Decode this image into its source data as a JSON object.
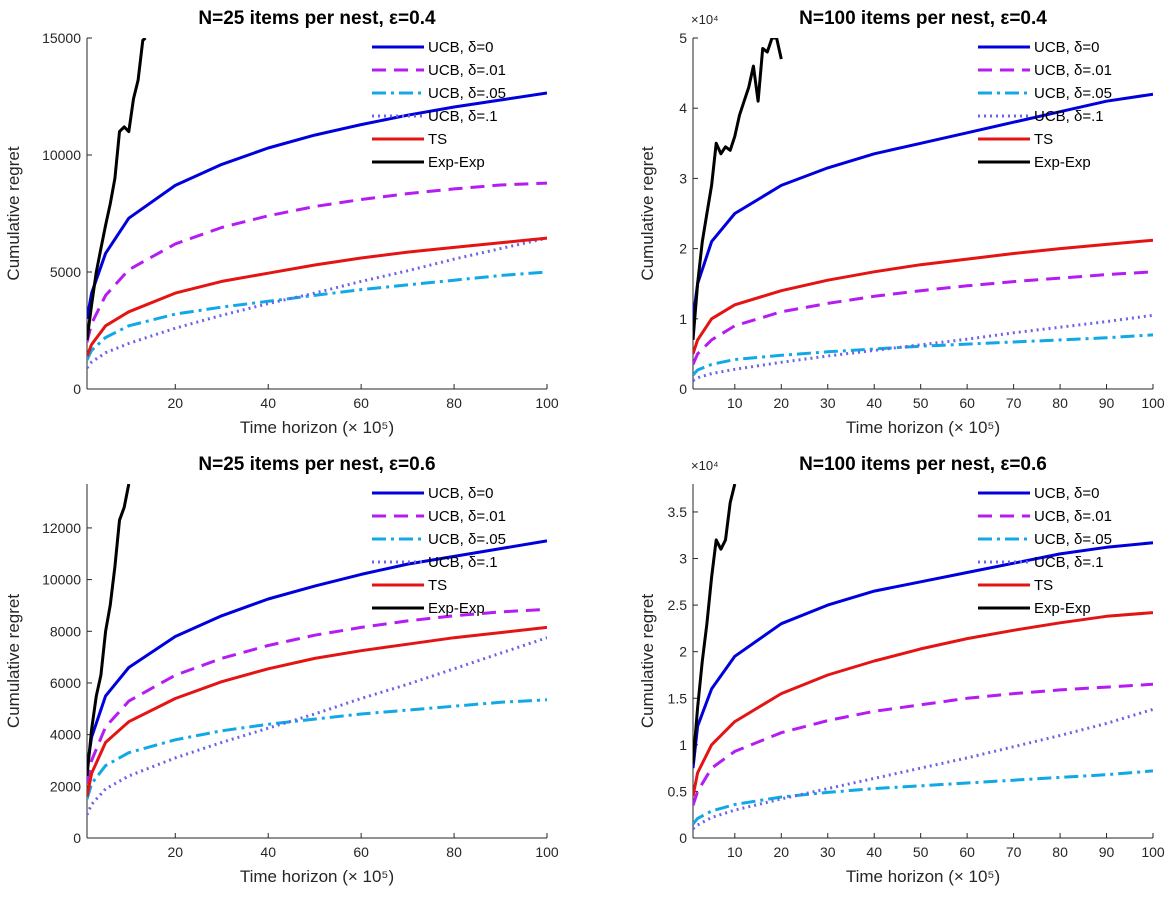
{
  "chart_data": [
    {
      "type": "line",
      "title": "N=25 items per nest, ε=0.4",
      "xlabel": "Time horizon (× 10⁵)",
      "ylabel": "Cumulative regret",
      "xlim": [
        1,
        100
      ],
      "ylim": [
        0,
        15000
      ],
      "xticks": [
        20,
        40,
        60,
        80,
        100
      ],
      "yticks": [
        0,
        5000,
        10000,
        15000
      ],
      "ytick_labels": [
        "0",
        "5000",
        "10000",
        "15000"
      ],
      "legend_position": "top-right",
      "series": [
        {
          "name": "UCB, δ=0",
          "x": [
            1,
            2,
            5,
            10,
            20,
            30,
            40,
            50,
            60,
            70,
            80,
            90,
            100
          ],
          "y": [
            3000,
            4100,
            5800,
            7300,
            8700,
            9600,
            10300,
            10850,
            11300,
            11700,
            12050,
            12350,
            12650
          ]
        },
        {
          "name": "UCB, δ=.01",
          "x": [
            1,
            2,
            5,
            10,
            20,
            30,
            40,
            50,
            60,
            70,
            80,
            90,
            100
          ],
          "y": [
            2000,
            2800,
            4000,
            5100,
            6200,
            6900,
            7400,
            7800,
            8100,
            8350,
            8550,
            8720,
            8800
          ]
        },
        {
          "name": "UCB, δ=.05",
          "x": [
            1,
            2,
            5,
            10,
            20,
            30,
            40,
            50,
            60,
            70,
            80,
            90,
            100
          ],
          "y": [
            1250,
            1650,
            2200,
            2700,
            3200,
            3500,
            3750,
            4000,
            4250,
            4450,
            4650,
            4850,
            5000
          ]
        },
        {
          "name": "UCB, δ=.1",
          "x": [
            1,
            2,
            5,
            10,
            20,
            30,
            40,
            50,
            60,
            70,
            80,
            90,
            100
          ],
          "y": [
            900,
            1150,
            1550,
            1950,
            2600,
            3150,
            3650,
            4100,
            4600,
            5050,
            5550,
            6000,
            6450
          ]
        },
        {
          "name": "TS",
          "x": [
            1,
            2,
            5,
            10,
            20,
            30,
            40,
            50,
            60,
            70,
            80,
            90,
            100
          ],
          "y": [
            1400,
            1900,
            2700,
            3300,
            4100,
            4600,
            4950,
            5300,
            5600,
            5850,
            6050,
            6250,
            6450
          ]
        },
        {
          "name": "Exp-Exp",
          "x": [
            1,
            2,
            3,
            4,
            5,
            6,
            7,
            8,
            9,
            10,
            11,
            12,
            13,
            13.6
          ],
          "y": [
            2100,
            3600,
            5000,
            6000,
            7000,
            7900,
            9000,
            11000,
            11200,
            11000,
            12400,
            13200,
            14900,
            15000
          ]
        }
      ]
    },
    {
      "type": "line",
      "title": "N=100 items per nest, ε=0.4",
      "xlabel": "Time horizon (× 10⁵)",
      "ylabel": "Cumulative regret",
      "xlim": [
        1,
        100
      ],
      "ylim": [
        0,
        5
      ],
      "yscale_label": "×10⁴",
      "xticks": [
        10,
        20,
        30,
        40,
        50,
        60,
        70,
        80,
        90,
        100
      ],
      "yticks": [
        0,
        1,
        2,
        3,
        4,
        5
      ],
      "ytick_labels": [
        "0",
        "1",
        "2",
        "3",
        "4",
        "5"
      ],
      "legend_position": "top-right",
      "series": [
        {
          "name": "UCB, δ=0",
          "x": [
            1,
            2,
            5,
            10,
            20,
            30,
            40,
            50,
            60,
            70,
            80,
            90,
            100
          ],
          "y": [
            1.0,
            1.5,
            2.1,
            2.5,
            2.9,
            3.15,
            3.35,
            3.5,
            3.65,
            3.8,
            3.95,
            4.1,
            4.2
          ]
        },
        {
          "name": "UCB, δ=.01",
          "x": [
            1,
            2,
            5,
            10,
            20,
            30,
            40,
            50,
            60,
            70,
            80,
            90,
            100
          ],
          "y": [
            0.35,
            0.5,
            0.7,
            0.9,
            1.1,
            1.22,
            1.32,
            1.4,
            1.47,
            1.53,
            1.58,
            1.63,
            1.67
          ]
        },
        {
          "name": "UCB, δ=.05",
          "x": [
            1,
            2,
            5,
            10,
            20,
            30,
            40,
            50,
            60,
            70,
            80,
            90,
            100
          ],
          "y": [
            0.2,
            0.27,
            0.35,
            0.42,
            0.48,
            0.53,
            0.57,
            0.61,
            0.64,
            0.67,
            0.7,
            0.73,
            0.77
          ]
        },
        {
          "name": "UCB, δ=.1",
          "x": [
            1,
            2,
            5,
            10,
            20,
            30,
            40,
            50,
            60,
            70,
            80,
            90,
            100
          ],
          "y": [
            0.12,
            0.16,
            0.22,
            0.28,
            0.38,
            0.47,
            0.55,
            0.63,
            0.71,
            0.8,
            0.88,
            0.96,
            1.05
          ]
        },
        {
          "name": "TS",
          "x": [
            1,
            2,
            5,
            10,
            20,
            30,
            40,
            50,
            60,
            70,
            80,
            90,
            100
          ],
          "y": [
            0.5,
            0.7,
            1.0,
            1.2,
            1.4,
            1.55,
            1.67,
            1.77,
            1.85,
            1.93,
            2.0,
            2.06,
            2.12
          ]
        },
        {
          "name": "Exp-Exp",
          "x": [
            1,
            2,
            3,
            4,
            5,
            6,
            7,
            8,
            9,
            10,
            11,
            12,
            13,
            14,
            15,
            16,
            17,
            18,
            19,
            20
          ],
          "y": [
            0.7,
            1.5,
            2.1,
            2.5,
            2.9,
            3.5,
            3.35,
            3.45,
            3.4,
            3.6,
            3.9,
            4.1,
            4.3,
            4.6,
            4.1,
            4.85,
            4.8,
            5.0,
            5.0,
            4.7
          ]
        }
      ]
    },
    {
      "type": "line",
      "title": "N=25 items per nest, ε=0.6",
      "xlabel": "Time horizon (× 10⁵)",
      "ylabel": "Cumulative regret",
      "xlim": [
        1,
        100
      ],
      "ylim": [
        0,
        13700
      ],
      "xticks": [
        20,
        40,
        60,
        80,
        100
      ],
      "yticks": [
        0,
        2000,
        4000,
        6000,
        8000,
        10000,
        12000
      ],
      "ytick_labels": [
        "0",
        "2000",
        "4000",
        "6000",
        "8000",
        "10000",
        "12000"
      ],
      "legend_position": "top-right",
      "series": [
        {
          "name": "UCB, δ=0",
          "x": [
            1,
            2,
            5,
            10,
            20,
            30,
            40,
            50,
            60,
            70,
            80,
            90,
            100
          ],
          "y": [
            2700,
            3900,
            5500,
            6600,
            7800,
            8600,
            9250,
            9750,
            10200,
            10600,
            10900,
            11200,
            11500
          ]
        },
        {
          "name": "UCB, δ=.01",
          "x": [
            1,
            2,
            5,
            10,
            20,
            30,
            40,
            50,
            60,
            70,
            80,
            90,
            100
          ],
          "y": [
            2100,
            3000,
            4300,
            5300,
            6300,
            6950,
            7450,
            7850,
            8150,
            8400,
            8600,
            8750,
            8850
          ]
        },
        {
          "name": "UCB, δ=.05",
          "x": [
            1,
            2,
            5,
            10,
            20,
            30,
            40,
            50,
            60,
            70,
            80,
            90,
            100
          ],
          "y": [
            1500,
            2100,
            2800,
            3300,
            3800,
            4150,
            4400,
            4600,
            4800,
            4950,
            5100,
            5250,
            5350
          ]
        },
        {
          "name": "UCB, δ=.1",
          "x": [
            1,
            2,
            5,
            10,
            20,
            30,
            40,
            50,
            60,
            70,
            80,
            90,
            100
          ],
          "y": [
            900,
            1300,
            1900,
            2400,
            3100,
            3700,
            4250,
            4800,
            5400,
            5950,
            6550,
            7150,
            7750
          ]
        },
        {
          "name": "TS",
          "x": [
            1,
            2,
            5,
            10,
            20,
            30,
            40,
            50,
            60,
            70,
            80,
            90,
            100
          ],
          "y": [
            1600,
            2500,
            3700,
            4500,
            5400,
            6050,
            6550,
            6950,
            7250,
            7500,
            7750,
            7950,
            8150
          ]
        },
        {
          "name": "Exp-Exp",
          "x": [
            1,
            2,
            3,
            4,
            5,
            6,
            7,
            8,
            9,
            10
          ],
          "y": [
            2400,
            4200,
            5500,
            6300,
            8000,
            9000,
            10500,
            12300,
            12800,
            13700
          ]
        }
      ]
    },
    {
      "type": "line",
      "title": "N=100 items per nest, ε=0.6",
      "xlabel": "Time horizon (× 10⁵)",
      "ylabel": "Cumulative regret",
      "xlim": [
        1,
        100
      ],
      "ylim": [
        0,
        3.8
      ],
      "yscale_label": "×10⁴",
      "xticks": [
        10,
        20,
        30,
        40,
        50,
        60,
        70,
        80,
        90,
        100
      ],
      "yticks": [
        0,
        0.5,
        1,
        1.5,
        2,
        2.5,
        3,
        3.5
      ],
      "ytick_labels": [
        "0",
        "0.5",
        "1",
        "1.5",
        "2",
        "2.5",
        "3",
        "3.5"
      ],
      "legend_position": "top-right",
      "series": [
        {
          "name": "UCB, δ=0",
          "x": [
            1,
            2,
            5,
            10,
            20,
            30,
            40,
            50,
            60,
            70,
            80,
            90,
            100
          ],
          "y": [
            0.75,
            1.2,
            1.6,
            1.95,
            2.3,
            2.5,
            2.65,
            2.75,
            2.85,
            2.95,
            3.05,
            3.12,
            3.17
          ]
        },
        {
          "name": "UCB, δ=.01",
          "x": [
            1,
            2,
            5,
            10,
            20,
            30,
            40,
            50,
            60,
            70,
            80,
            90,
            100
          ],
          "y": [
            0.35,
            0.5,
            0.75,
            0.93,
            1.13,
            1.26,
            1.36,
            1.43,
            1.5,
            1.55,
            1.59,
            1.62,
            1.65
          ]
        },
        {
          "name": "UCB, δ=.05",
          "x": [
            1,
            2,
            5,
            10,
            20,
            30,
            40,
            50,
            60,
            70,
            80,
            90,
            100
          ],
          "y": [
            0.15,
            0.21,
            0.29,
            0.36,
            0.44,
            0.49,
            0.53,
            0.56,
            0.59,
            0.62,
            0.65,
            0.68,
            0.72
          ]
        },
        {
          "name": "UCB, δ=.1",
          "x": [
            1,
            2,
            5,
            10,
            20,
            30,
            40,
            50,
            60,
            70,
            80,
            90,
            100
          ],
          "y": [
            0.1,
            0.14,
            0.22,
            0.3,
            0.42,
            0.53,
            0.64,
            0.75,
            0.86,
            0.98,
            1.1,
            1.23,
            1.38
          ]
        },
        {
          "name": "TS",
          "x": [
            1,
            2,
            5,
            10,
            20,
            30,
            40,
            50,
            60,
            70,
            80,
            90,
            100
          ],
          "y": [
            0.45,
            0.7,
            1.0,
            1.25,
            1.55,
            1.75,
            1.9,
            2.03,
            2.14,
            2.23,
            2.31,
            2.38,
            2.42
          ]
        },
        {
          "name": "Exp-Exp",
          "x": [
            1,
            2,
            3,
            4,
            5,
            6,
            7,
            8,
            9,
            10
          ],
          "y": [
            0.8,
            1.4,
            1.9,
            2.3,
            2.8,
            3.2,
            3.1,
            3.2,
            3.6,
            3.8
          ]
        }
      ]
    }
  ],
  "style": {
    "series_colors": [
      "#0000dd",
      "#b41cf2",
      "#10a8e6",
      "#6b63ea",
      "#e41414",
      "#000000"
    ],
    "series_dash": [
      "",
      "14,8",
      "14,5,3,5",
      "2,4",
      "",
      ""
    ],
    "axis_color": "#262626"
  }
}
